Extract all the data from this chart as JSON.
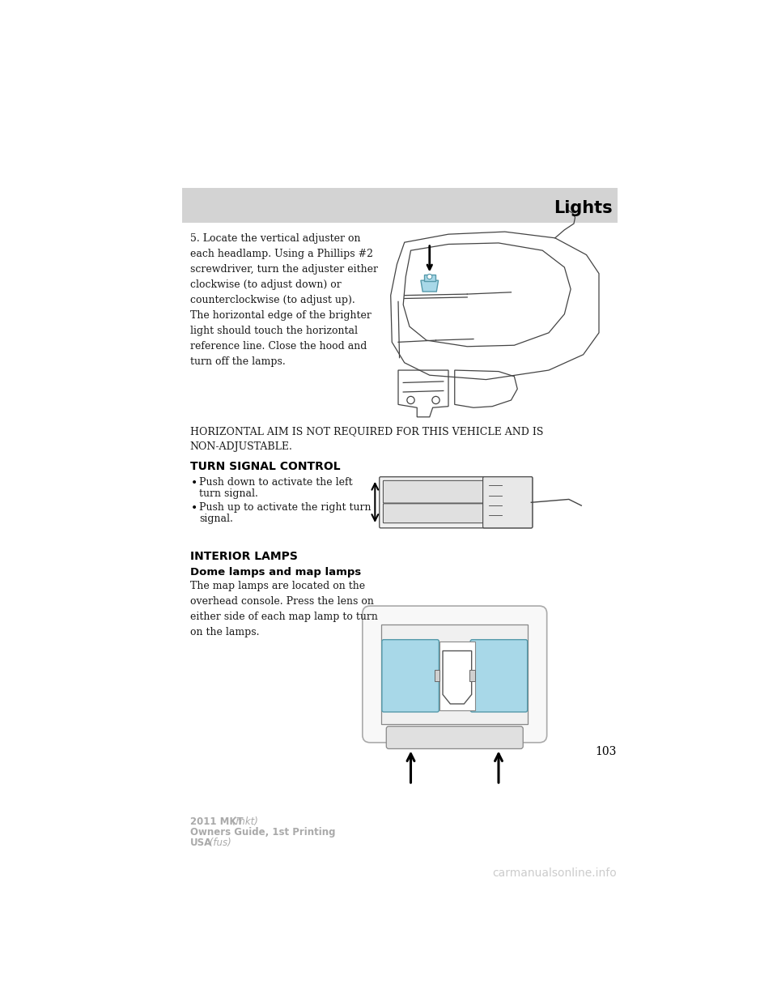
{
  "page_bg": "#ffffff",
  "header_bar_color": "#d3d3d3",
  "header_text": "Lights",
  "header_text_color": "#000000",
  "page_number": "103",
  "footer_line1": "2011 MKT",
  "footer_line1_italic": "(mkt)",
  "footer_line2": "Owners Guide, 1st Printing",
  "footer_line3": "USA",
  "footer_line3_italic": "(fus)",
  "watermark": "carmanualsonline.info",
  "section1_text": "5. Locate the vertical adjuster on\neach headlamp. Using a Phillips #2\nscrewdriver, turn the adjuster either\nclockwise (to adjust down) or\ncounterclockwise (to adjust up).\nThe horizontal edge of the brighter\nlight should touch the horizontal\nreference line. Close the hood and\nturn off the lamps.",
  "horizontal_aim_text": "HORIZONTAL AIM IS NOT REQUIRED FOR THIS VEHICLE AND IS\nNON-ADJUSTABLE.",
  "turn_signal_header": "TURN SIGNAL CONTROL",
  "turn_signal_bullet1": "Push down to activate the left\n    turn signal.",
  "turn_signal_bullet2": "Push up to activate the right turn\n    signal.",
  "interior_lamps_header": "INTERIOR LAMPS",
  "dome_lamps_header": "Dome lamps and map lamps",
  "dome_lamps_text": "The map lamps are located on the\noverhead console. Press the lens on\neither side of each map lamp to turn\non the lamps.",
  "cyan_color": "#a8d8e8",
  "light_gray": "#d3d3d3",
  "dark_gray": "#808080",
  "black": "#000000",
  "edge_color": "#444444",
  "text_color": "#1a1a1a"
}
